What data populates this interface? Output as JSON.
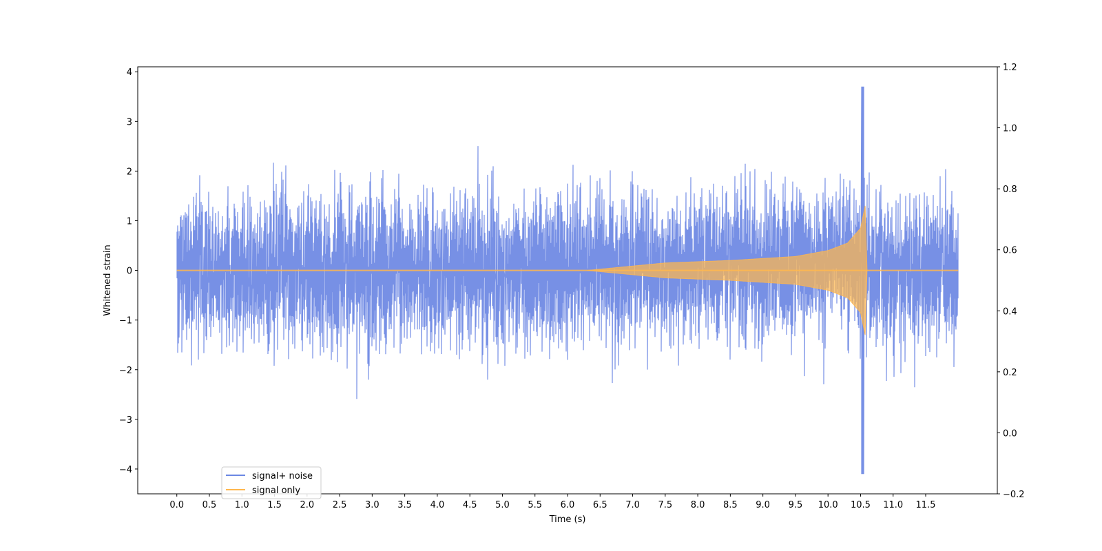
{
  "chart_data": {
    "type": "line",
    "title": "",
    "xlabel": "Time (s)",
    "ylabel": "Whitened strain",
    "xlim": [
      -0.6,
      12.6
    ],
    "ylim": [
      -4.5,
      4.1
    ],
    "y2lim": [
      -0.2,
      1.2
    ],
    "grid": false,
    "legend_position": "lower-left",
    "x_ticks": [
      0.0,
      0.5,
      1.0,
      1.5,
      2.0,
      2.5,
      3.0,
      3.5,
      4.0,
      4.5,
      5.0,
      5.5,
      6.0,
      6.5,
      7.0,
      7.5,
      8.0,
      8.5,
      9.0,
      9.5,
      10.0,
      10.5,
      11.0,
      11.5
    ],
    "x_tick_labels": [
      "0.0",
      "0.5",
      "1.0",
      "1.5",
      "2.0",
      "2.5",
      "3.0",
      "3.5",
      "4.0",
      "4.5",
      "5.0",
      "5.5",
      "6.0",
      "6.5",
      "7.0",
      "7.5",
      "8.0",
      "8.5",
      "9.0",
      "9.5",
      "10.0",
      "10.5",
      "11.0",
      "11.5"
    ],
    "y_ticks": [
      -4,
      -3,
      -2,
      -1,
      0,
      1,
      2,
      3,
      4
    ],
    "y_tick_labels": [
      "−4",
      "−3",
      "−2",
      "−1",
      "0",
      "1",
      "2",
      "3",
      "4"
    ],
    "y2_ticks": [
      -0.2,
      0.0,
      0.2,
      0.4,
      0.6,
      0.8,
      1.0,
      1.2
    ],
    "y2_tick_labels": [
      "−0.2",
      "0.0",
      "0.2",
      "0.4",
      "0.6",
      "0.8",
      "1.0",
      "1.2"
    ],
    "series": [
      {
        "name": "signal+ noise",
        "color": "#6b87e3",
        "description": "white noise, approx. ±2 typical amplitude, spanning t = 0 to 12",
        "x_start": 0.0,
        "x_end": 12.0,
        "approx_peak": 3.7,
        "approx_peak_time": 10.53,
        "approx_min": -4.1,
        "approx_min_time": 10.53
      },
      {
        "name": "signal only",
        "color": "#ffb74d",
        "description": "chirp signal: flat at 0 until about t = 6.3 s, envelope grows to about ±1.3 at t = 10.57 s (merger), then returns to 0",
        "envelope_points": [
          [
            6.3,
            0.0
          ],
          [
            7.5,
            0.15
          ],
          [
            8.5,
            0.2
          ],
          [
            9.5,
            0.28
          ],
          [
            10.0,
            0.4
          ],
          [
            10.3,
            0.55
          ],
          [
            10.5,
            0.85
          ],
          [
            10.57,
            1.3
          ],
          [
            10.6,
            0.0
          ]
        ]
      }
    ]
  }
}
